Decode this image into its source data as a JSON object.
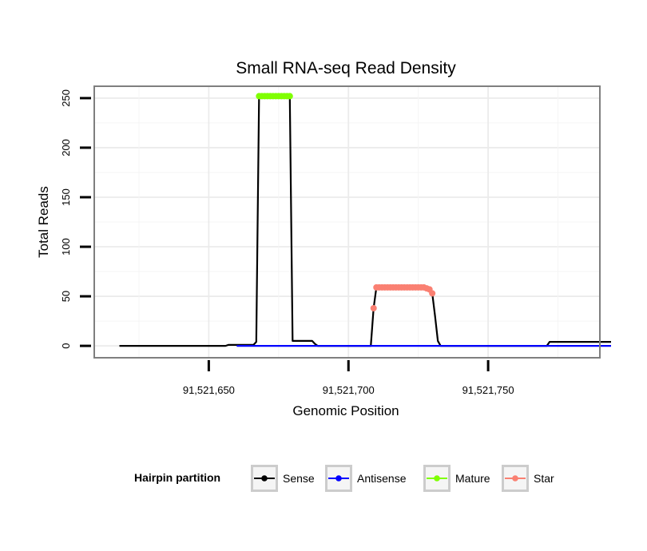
{
  "chart_data": {
    "type": "line",
    "title": "Small RNA-seq Read Density",
    "xlabel": "Genomic Position",
    "ylabel": "Total Reads",
    "xlim": [
      91521609,
      91521790
    ],
    "ylim": [
      -12,
      262
    ],
    "x_ticks": [
      {
        "value": 91521650,
        "label": "91,521,650"
      },
      {
        "value": 91521700,
        "label": "91,521,700"
      },
      {
        "value": 91521750,
        "label": "91,521,750"
      }
    ],
    "y_ticks": [
      {
        "value": 0,
        "label": "0"
      },
      {
        "value": 50,
        "label": "50"
      },
      {
        "value": 100,
        "label": "100"
      },
      {
        "value": 150,
        "label": "150"
      },
      {
        "value": 200,
        "label": "200"
      },
      {
        "value": 250,
        "label": "250"
      }
    ],
    "grid": true,
    "legend": {
      "title": "Hairpin partition",
      "position": "bottom",
      "entries": [
        {
          "name": "Sense",
          "color": "#000000"
        },
        {
          "name": "Antisense",
          "color": "#0000ff"
        },
        {
          "name": "Mature",
          "color": "#7fff00"
        },
        {
          "name": "Star",
          "color": "#fa8072"
        }
      ]
    },
    "series": [
      {
        "name": "Sense",
        "color": "#000000",
        "style": "line",
        "x": [
          91521618,
          91521656,
          91521657,
          91521666,
          91521667,
          91521668,
          91521679,
          91521680,
          91521687,
          91521688,
          91521689,
          91521708,
          91521709,
          91521710,
          91521728,
          91521729,
          91521730,
          91521731,
          91521732,
          91521733,
          91521771,
          91521772,
          91521794
        ],
        "values": [
          0,
          0,
          1,
          1,
          4,
          252,
          252,
          5,
          5,
          2,
          0,
          0,
          38,
          59,
          59,
          57,
          53,
          30,
          5,
          0,
          0,
          4,
          4
        ]
      },
      {
        "name": "Antisense",
        "color": "#0000ff",
        "style": "line",
        "x": [
          91521660,
          91521794
        ],
        "values": [
          0,
          0
        ]
      },
      {
        "name": "Mature",
        "color": "#7fff00",
        "style": "points",
        "x": [
          91521668,
          91521669,
          91521670,
          91521671,
          91521672,
          91521673,
          91521674,
          91521675,
          91521676,
          91521677,
          91521678,
          91521679
        ],
        "values": [
          252,
          252,
          252,
          252,
          252,
          252,
          252,
          252,
          252,
          252,
          252,
          252
        ]
      },
      {
        "name": "Star",
        "color": "#fa8072",
        "style": "points",
        "x": [
          91521709,
          91521710,
          91521711,
          91521712,
          91521713,
          91521714,
          91521715,
          91521716,
          91521717,
          91521718,
          91521719,
          91521720,
          91521721,
          91521722,
          91521723,
          91521724,
          91521725,
          91521726,
          91521727,
          91521728,
          91521729,
          91521730
        ],
        "values": [
          38,
          59,
          59,
          59,
          59,
          59,
          59,
          59,
          59,
          59,
          59,
          59,
          59,
          59,
          59,
          59,
          59,
          59,
          59,
          58,
          57,
          53
        ]
      }
    ]
  }
}
